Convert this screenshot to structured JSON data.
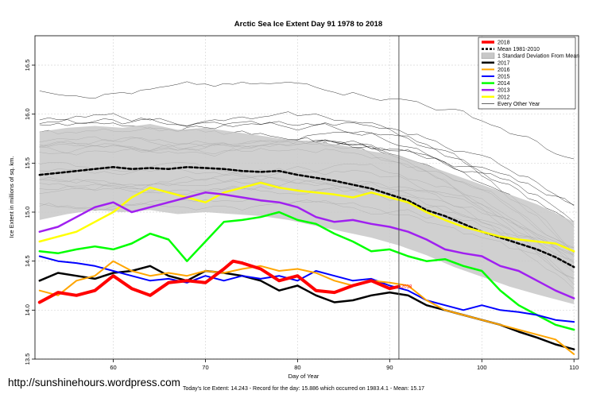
{
  "credit_text": "http://sunshinehours.wordpress.com",
  "footer_text": "Today's Ice Extent: 14.243  -  Record for the day: 15.886 which occurred on 1983.4.1  -  Mean: 15.17",
  "chart_data": {
    "type": "line",
    "title": "Arctic Sea Ice Extent Day 91 1978 to 2018",
    "xlabel": "Day of Year",
    "ylabel": "Ice Extent in millions of sq. km.",
    "xlim": [
      51.5,
      110.5
    ],
    "ylim": [
      13.5,
      16.8
    ],
    "xticks": [
      60,
      70,
      80,
      90,
      100,
      110
    ],
    "yticks": [
      13.5,
      14.0,
      14.5,
      15.0,
      15.5,
      16.0,
      16.5
    ],
    "grid": true,
    "legend_position": "top-right",
    "current_day": 91,
    "current_day_label": "2018",
    "background_year_label": "Every Other Year",
    "band": {
      "name": "1 Standard Deviation From Mean",
      "x": [
        52,
        55,
        58,
        61,
        64,
        67,
        70,
        73,
        76,
        79,
        82,
        85,
        88,
        91,
        94,
        97,
        100,
        103,
        106,
        110
      ],
      "upper": [
        15.82,
        15.86,
        15.88,
        15.86,
        15.9,
        15.84,
        15.86,
        15.82,
        15.78,
        15.74,
        15.72,
        15.68,
        15.62,
        15.58,
        15.48,
        15.38,
        15.28,
        15.18,
        15.08,
        14.9
      ],
      "lower": [
        14.92,
        14.98,
        15.02,
        15.0,
        15.02,
        14.98,
        15.0,
        14.98,
        14.96,
        14.92,
        14.86,
        14.8,
        14.74,
        14.66,
        14.56,
        14.44,
        14.34,
        14.24,
        14.16,
        14.06
      ]
    },
    "series": [
      {
        "name": "Mean 1981-2010",
        "color": "#000000",
        "style": "dotted",
        "width": 2.5,
        "x": [
          52,
          54,
          56,
          58,
          60,
          62,
          64,
          66,
          68,
          70,
          72,
          74,
          76,
          78,
          80,
          82,
          84,
          86,
          88,
          90,
          92,
          94,
          96,
          98,
          100,
          102,
          104,
          106,
          108,
          110
        ],
        "y": [
          15.38,
          15.4,
          15.42,
          15.44,
          15.46,
          15.44,
          15.45,
          15.44,
          15.46,
          15.45,
          15.44,
          15.42,
          15.41,
          15.42,
          15.38,
          15.35,
          15.32,
          15.28,
          15.24,
          15.18,
          15.12,
          15.02,
          14.96,
          14.88,
          14.8,
          14.74,
          14.68,
          14.62,
          14.54,
          14.44
        ]
      },
      {
        "name": "2018",
        "color": "#ff0000",
        "style": "solid",
        "width": 4,
        "x": [
          52,
          54,
          56,
          58,
          60,
          62,
          64,
          66,
          68,
          70,
          72,
          73,
          74,
          76,
          78,
          80,
          82,
          84,
          86,
          88,
          90,
          91
        ],
        "y": [
          14.08,
          14.18,
          14.15,
          14.2,
          14.35,
          14.22,
          14.15,
          14.28,
          14.3,
          14.28,
          14.42,
          14.5,
          14.48,
          14.42,
          14.3,
          14.35,
          14.2,
          14.18,
          14.25,
          14.3,
          14.22,
          14.24
        ]
      },
      {
        "name": "2016",
        "color": "#ffa500",
        "style": "solid",
        "width": 2,
        "x": [
          52,
          54,
          56,
          58,
          60,
          62,
          64,
          66,
          68,
          70,
          72,
          74,
          76,
          78,
          80,
          82,
          84,
          86,
          88,
          90,
          92,
          94,
          96,
          98,
          100,
          102,
          104,
          106,
          108,
          110
        ],
        "y": [
          14.2,
          14.15,
          14.3,
          14.35,
          14.5,
          14.4,
          14.35,
          14.38,
          14.35,
          14.4,
          14.38,
          14.42,
          14.45,
          14.4,
          14.42,
          14.38,
          14.3,
          14.25,
          14.3,
          14.28,
          14.25,
          14.1,
          14.0,
          13.95,
          13.9,
          13.85,
          13.8,
          13.75,
          13.7,
          13.55
        ]
      },
      {
        "name": "2015",
        "color": "#0000ff",
        "style": "solid",
        "width": 2,
        "x": [
          52,
          54,
          56,
          58,
          60,
          62,
          64,
          66,
          68,
          70,
          72,
          74,
          76,
          78,
          80,
          82,
          84,
          86,
          88,
          90,
          92,
          94,
          96,
          98,
          100,
          102,
          104,
          106,
          108,
          110
        ],
        "y": [
          14.55,
          14.5,
          14.48,
          14.45,
          14.4,
          14.35,
          14.3,
          14.32,
          14.28,
          14.35,
          14.3,
          14.35,
          14.32,
          14.35,
          14.3,
          14.4,
          14.35,
          14.3,
          14.32,
          14.25,
          14.2,
          14.1,
          14.05,
          14.0,
          14.05,
          14.0,
          13.98,
          13.95,
          13.9,
          13.88
        ]
      },
      {
        "name": "2017",
        "color": "#000000",
        "style": "solid",
        "width": 2.5,
        "x": [
          52,
          54,
          56,
          58,
          60,
          62,
          64,
          66,
          68,
          70,
          72,
          74,
          76,
          78,
          80,
          82,
          84,
          86,
          88,
          90,
          92,
          94,
          96,
          98,
          100,
          102,
          104,
          106,
          108,
          110
        ],
        "y": [
          14.3,
          14.38,
          14.35,
          14.32,
          14.38,
          14.4,
          14.45,
          14.35,
          14.3,
          14.4,
          14.38,
          14.35,
          14.3,
          14.2,
          14.25,
          14.15,
          14.08,
          14.1,
          14.15,
          14.18,
          14.15,
          14.05,
          14.0,
          13.95,
          13.9,
          13.85,
          13.78,
          13.72,
          13.65,
          13.6
        ]
      },
      {
        "name": "2014",
        "color": "#00ff00",
        "style": "solid",
        "width": 2.5,
        "x": [
          52,
          54,
          56,
          58,
          60,
          62,
          64,
          66,
          68,
          70,
          72,
          74,
          76,
          78,
          80,
          82,
          84,
          86,
          88,
          90,
          92,
          94,
          96,
          98,
          100,
          102,
          104,
          106,
          108,
          110
        ],
        "y": [
          14.6,
          14.58,
          14.62,
          14.65,
          14.62,
          14.68,
          14.78,
          14.72,
          14.5,
          14.7,
          14.9,
          14.92,
          14.95,
          15.0,
          14.92,
          14.88,
          14.78,
          14.7,
          14.6,
          14.62,
          14.55,
          14.5,
          14.52,
          14.45,
          14.4,
          14.2,
          14.05,
          13.95,
          13.85,
          13.8
        ]
      },
      {
        "name": "2013",
        "color": "#a020f0",
        "style": "solid",
        "width": 2.5,
        "x": [
          52,
          54,
          56,
          58,
          60,
          62,
          64,
          66,
          68,
          70,
          72,
          74,
          76,
          78,
          80,
          82,
          84,
          86,
          88,
          90,
          92,
          94,
          96,
          98,
          100,
          102,
          104,
          106,
          108,
          110
        ],
        "y": [
          14.8,
          14.85,
          14.95,
          15.05,
          15.1,
          15.0,
          15.05,
          15.1,
          15.15,
          15.2,
          15.18,
          15.15,
          15.12,
          15.1,
          15.05,
          14.95,
          14.9,
          14.92,
          14.88,
          14.85,
          14.8,
          14.72,
          14.62,
          14.58,
          14.55,
          14.45,
          14.4,
          14.3,
          14.2,
          14.12
        ]
      },
      {
        "name": "2012",
        "color": "#ffff00",
        "style": "solid",
        "width": 2.5,
        "x": [
          52,
          54,
          56,
          58,
          60,
          62,
          64,
          66,
          68,
          70,
          72,
          74,
          76,
          78,
          80,
          82,
          84,
          86,
          88,
          90,
          92,
          94,
          96,
          98,
          100,
          102,
          104,
          106,
          108,
          110
        ],
        "y": [
          14.7,
          14.75,
          14.8,
          14.9,
          15.0,
          15.15,
          15.25,
          15.2,
          15.15,
          15.1,
          15.2,
          15.25,
          15.3,
          15.25,
          15.22,
          15.2,
          15.18,
          15.15,
          15.2,
          15.15,
          15.1,
          15.0,
          14.92,
          14.85,
          14.8,
          14.75,
          14.72,
          14.7,
          14.68,
          14.6
        ]
      }
    ]
  }
}
